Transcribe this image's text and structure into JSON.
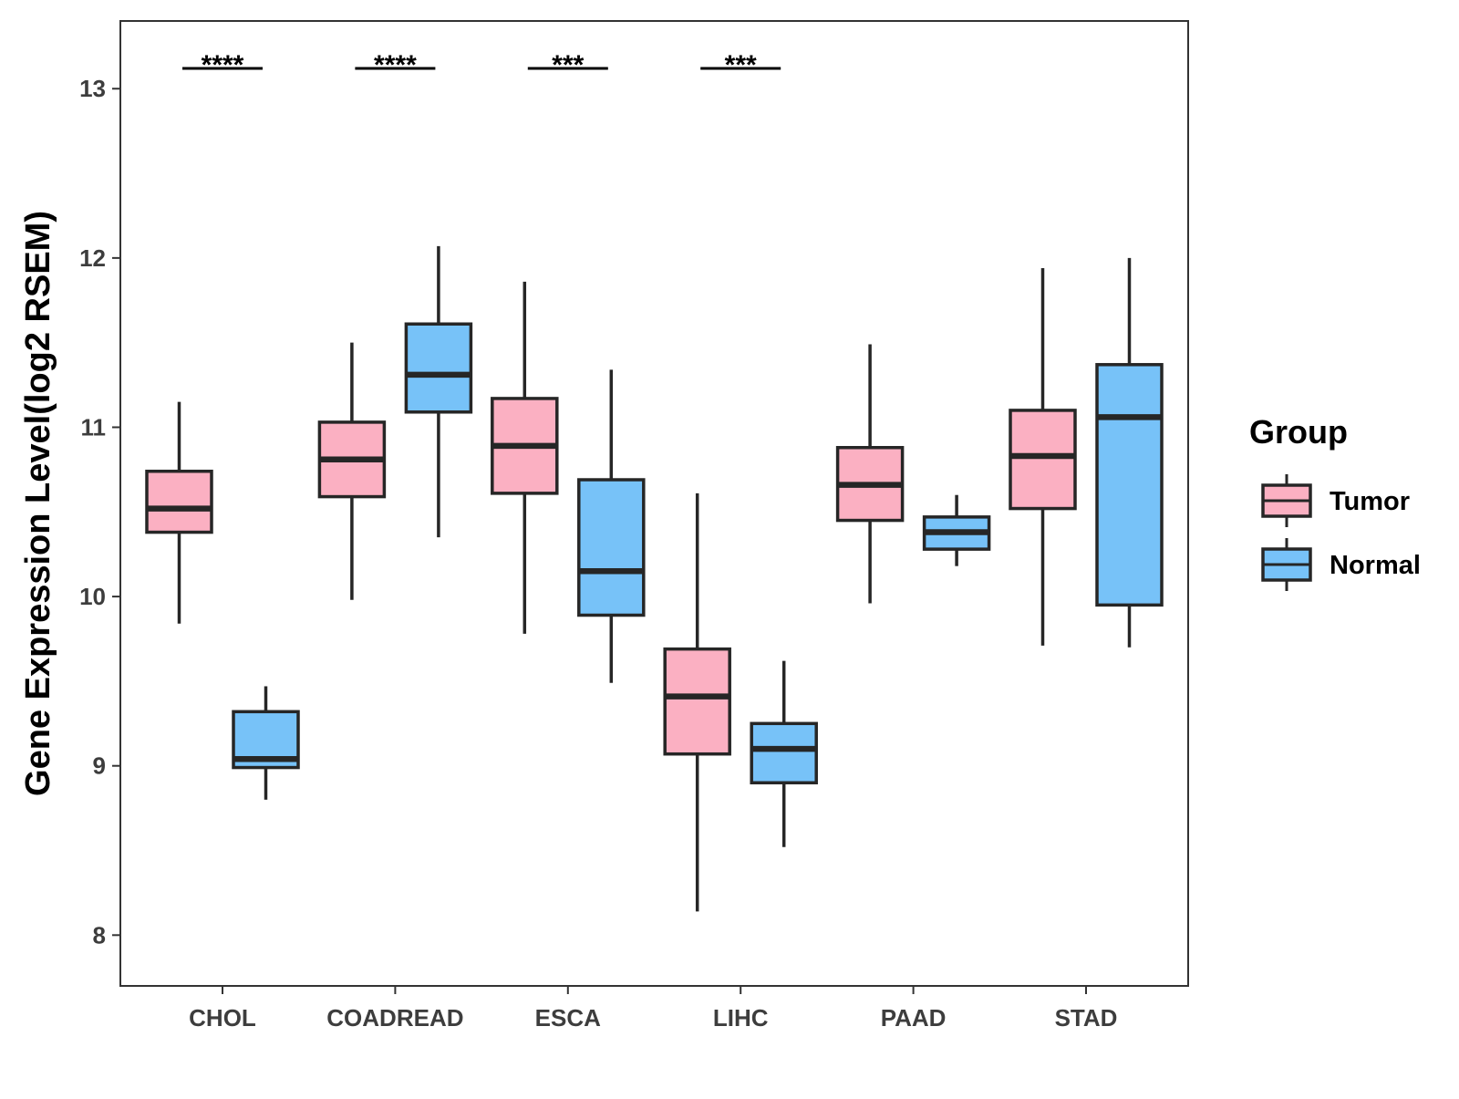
{
  "chart_data": {
    "type": "boxplot",
    "ylabel": "Gene Expression Level(log2 RSEM)",
    "xlabel": "",
    "ylim": [
      7.7,
      13.4
    ],
    "yticks": [
      8,
      9,
      10,
      11,
      12,
      13
    ],
    "categories": [
      "CHOL",
      "COADREAD",
      "ESCA",
      "LIHC",
      "PAAD",
      "STAD"
    ],
    "legend": {
      "title": "Group",
      "position": "right",
      "entries": [
        {
          "name": "Tumor",
          "color": "#FBB0C2"
        },
        {
          "name": "Normal",
          "color": "#77C2F8"
        }
      ]
    },
    "series": [
      {
        "name": "Tumor",
        "color": "#FBB0C2",
        "boxes": [
          {
            "min": 9.84,
            "q1": 10.38,
            "median": 10.52,
            "q3": 10.74,
            "max": 11.15
          },
          {
            "min": 9.98,
            "q1": 10.59,
            "median": 10.81,
            "q3": 11.03,
            "max": 11.5
          },
          {
            "min": 9.78,
            "q1": 10.61,
            "median": 10.89,
            "q3": 11.17,
            "max": 11.86
          },
          {
            "min": 8.14,
            "q1": 9.07,
            "median": 9.41,
            "q3": 9.69,
            "max": 10.61
          },
          {
            "min": 9.96,
            "q1": 10.45,
            "median": 10.66,
            "q3": 10.88,
            "max": 11.49
          },
          {
            "min": 9.71,
            "q1": 10.52,
            "median": 10.83,
            "q3": 11.1,
            "max": 11.94
          }
        ]
      },
      {
        "name": "Normal",
        "color": "#77C2F8",
        "boxes": [
          {
            "min": 8.8,
            "q1": 8.99,
            "median": 9.04,
            "q3": 9.32,
            "max": 9.47
          },
          {
            "min": 10.35,
            "q1": 11.09,
            "median": 11.31,
            "q3": 11.61,
            "max": 12.07
          },
          {
            "min": 9.49,
            "q1": 9.89,
            "median": 10.15,
            "q3": 10.69,
            "max": 11.34
          },
          {
            "min": 8.52,
            "q1": 8.9,
            "median": 9.1,
            "q3": 9.25,
            "max": 9.62
          },
          {
            "min": 10.18,
            "q1": 10.28,
            "median": 10.38,
            "q3": 10.47,
            "max": 10.6
          },
          {
            "min": 9.7,
            "q1": 9.95,
            "median": 11.06,
            "q3": 11.37,
            "max": 12.0
          }
        ]
      }
    ],
    "significance": [
      {
        "category": "CHOL",
        "label": "****"
      },
      {
        "category": "COADREAD",
        "label": "****"
      },
      {
        "category": "ESCA",
        "label": "***"
      },
      {
        "category": "LIHC",
        "label": "***"
      }
    ]
  }
}
